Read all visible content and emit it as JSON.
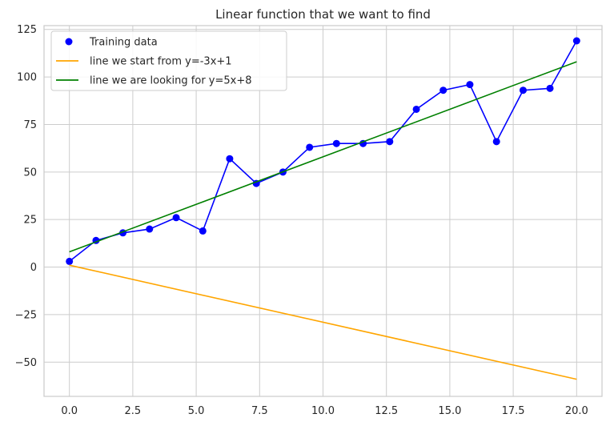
{
  "chart_data": {
    "type": "line",
    "title": "Linear function that we want to find",
    "xlabel": "",
    "ylabel": "",
    "xlim": [
      -1.0,
      21.0
    ],
    "ylim": [
      -68,
      127
    ],
    "xticks": [
      0.0,
      2.5,
      5.0,
      7.5,
      10.0,
      12.5,
      15.0,
      17.5,
      20.0
    ],
    "xtick_labels": [
      "0.0",
      "2.5",
      "5.0",
      "7.5",
      "10.0",
      "12.5",
      "15.0",
      "17.5",
      "20.0"
    ],
    "yticks": [
      -50,
      -25,
      0,
      25,
      50,
      75,
      100,
      125
    ],
    "ytick_labels": [
      "−50",
      "−25",
      "0",
      "25",
      "50",
      "75",
      "100",
      "125"
    ],
    "grid": true,
    "legend_position": "top-left",
    "series": [
      {
        "name": "Training data",
        "kind": "scatter-line",
        "color": "#0000ff",
        "x": [
          0.0,
          1.05,
          2.11,
          3.16,
          4.21,
          5.26,
          6.32,
          7.37,
          8.42,
          9.47,
          10.53,
          11.58,
          12.63,
          13.68,
          14.74,
          15.79,
          16.84,
          17.89,
          18.95,
          20.0
        ],
        "y": [
          3,
          14,
          18,
          20,
          26,
          19,
          57,
          44,
          50,
          63,
          65,
          65,
          66,
          83,
          93,
          96,
          66,
          93,
          94,
          119
        ]
      },
      {
        "name": "line we start from y=-3x+1",
        "kind": "line",
        "color": "#ffa500",
        "x": [
          0.0,
          20.0
        ],
        "y": [
          1,
          -59
        ]
      },
      {
        "name": "line we are looking for y=5x+8",
        "kind": "line",
        "color": "#008000",
        "x": [
          0.0,
          20.0
        ],
        "y": [
          8,
          108
        ]
      }
    ]
  }
}
